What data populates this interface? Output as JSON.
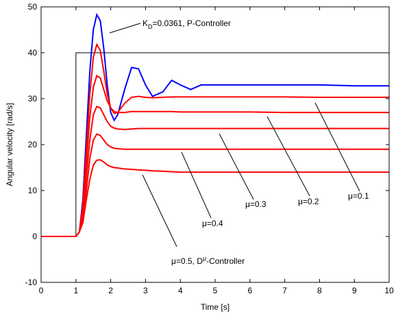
{
  "chart_data": {
    "type": "line",
    "xlabel": "Time [s]",
    "ylabel": "Angular velocity [rad/s]",
    "xlim": [
      0,
      10
    ],
    "ylim": [
      -10,
      50
    ],
    "xticks": [
      0,
      1,
      2,
      3,
      4,
      5,
      6,
      7,
      8,
      9,
      10
    ],
    "yticks": [
      -10,
      0,
      10,
      20,
      30,
      40,
      50
    ],
    "x": [
      0,
      1,
      1.1,
      1.2,
      1.3,
      1.4,
      1.5,
      1.6,
      1.7,
      1.8,
      1.9,
      2.0,
      2.1,
      2.2,
      2.4,
      2.6,
      2.8,
      3.0,
      3.2,
      3.5,
      3.75,
      4.0,
      4.3,
      4.6,
      5,
      6,
      7,
      8,
      9,
      10
    ],
    "series": [
      {
        "color": "#000000",
        "x": [
          0,
          1,
          1,
          10
        ],
        "values": [
          0,
          0,
          40,
          40
        ]
      },
      {
        "color": "#0000ff",
        "label": [
          "K",
          "D",
          "=0.0361, P-Controller"
        ],
        "values": [
          0,
          0,
          1,
          8,
          22,
          36,
          45,
          48.3,
          47,
          41,
          33,
          27,
          25.3,
          26.5,
          32,
          36.8,
          36.5,
          33,
          30.5,
          31.5,
          34,
          33,
          32,
          33,
          33,
          33,
          33,
          33,
          32.8,
          32.8
        ]
      },
      {
        "color": "#ff0000",
        "label": [
          "μ=0.1"
        ],
        "values": [
          0,
          0,
          1,
          7,
          19,
          31,
          39,
          41.8,
          40.5,
          36,
          31,
          28,
          26.8,
          27,
          29,
          30.3,
          30.5,
          30.3,
          30.2,
          30.3,
          30.4,
          30.4,
          30.4,
          30.4,
          30.4,
          30.4,
          30.4,
          30.3,
          30.3,
          30.3
        ]
      },
      {
        "color": "#ff0000",
        "label": [
          "μ=0.2"
        ],
        "values": [
          0,
          0,
          1,
          6,
          16,
          26,
          32.5,
          35,
          34.5,
          32,
          29.5,
          28,
          27.2,
          27,
          27,
          27.2,
          27.2,
          27.2,
          27.2,
          27.2,
          27.2,
          27.1,
          27.1,
          27.1,
          27.1,
          27.1,
          27,
          27,
          27,
          27
        ]
      },
      {
        "color": "#ff0000",
        "label": [
          "μ=0.3"
        ],
        "values": [
          0,
          0,
          1,
          5,
          13,
          21,
          26.5,
          28.3,
          28,
          26.5,
          25,
          24,
          23.6,
          23.4,
          23.3,
          23.4,
          23.5,
          23.5,
          23.5,
          23.5,
          23.5,
          23.5,
          23.5,
          23.5,
          23.5,
          23.5,
          23.5,
          23.5,
          23.5,
          23.5
        ]
      },
      {
        "color": "#ff0000",
        "label": [
          "μ=0.4"
        ],
        "values": [
          0,
          0,
          1,
          4,
          10,
          17,
          21,
          22.3,
          22,
          21,
          20,
          19.5,
          19.2,
          19.1,
          19,
          19,
          19,
          19,
          19,
          19,
          19,
          19,
          19,
          19,
          19,
          19,
          19,
          19,
          19,
          19
        ]
      },
      {
        "color": "#ff0000",
        "label": [
          "μ=0.5, D",
          "μ",
          "-Controller"
        ],
        "values": [
          0,
          0,
          1,
          3,
          8,
          12.5,
          15.5,
          16.6,
          16.7,
          16.2,
          15.6,
          15.2,
          15,
          14.9,
          14.7,
          14.6,
          14.5,
          14.4,
          14.3,
          14.2,
          14.1,
          14,
          14,
          14,
          14,
          14,
          14,
          14,
          14,
          14
        ]
      }
    ]
  }
}
